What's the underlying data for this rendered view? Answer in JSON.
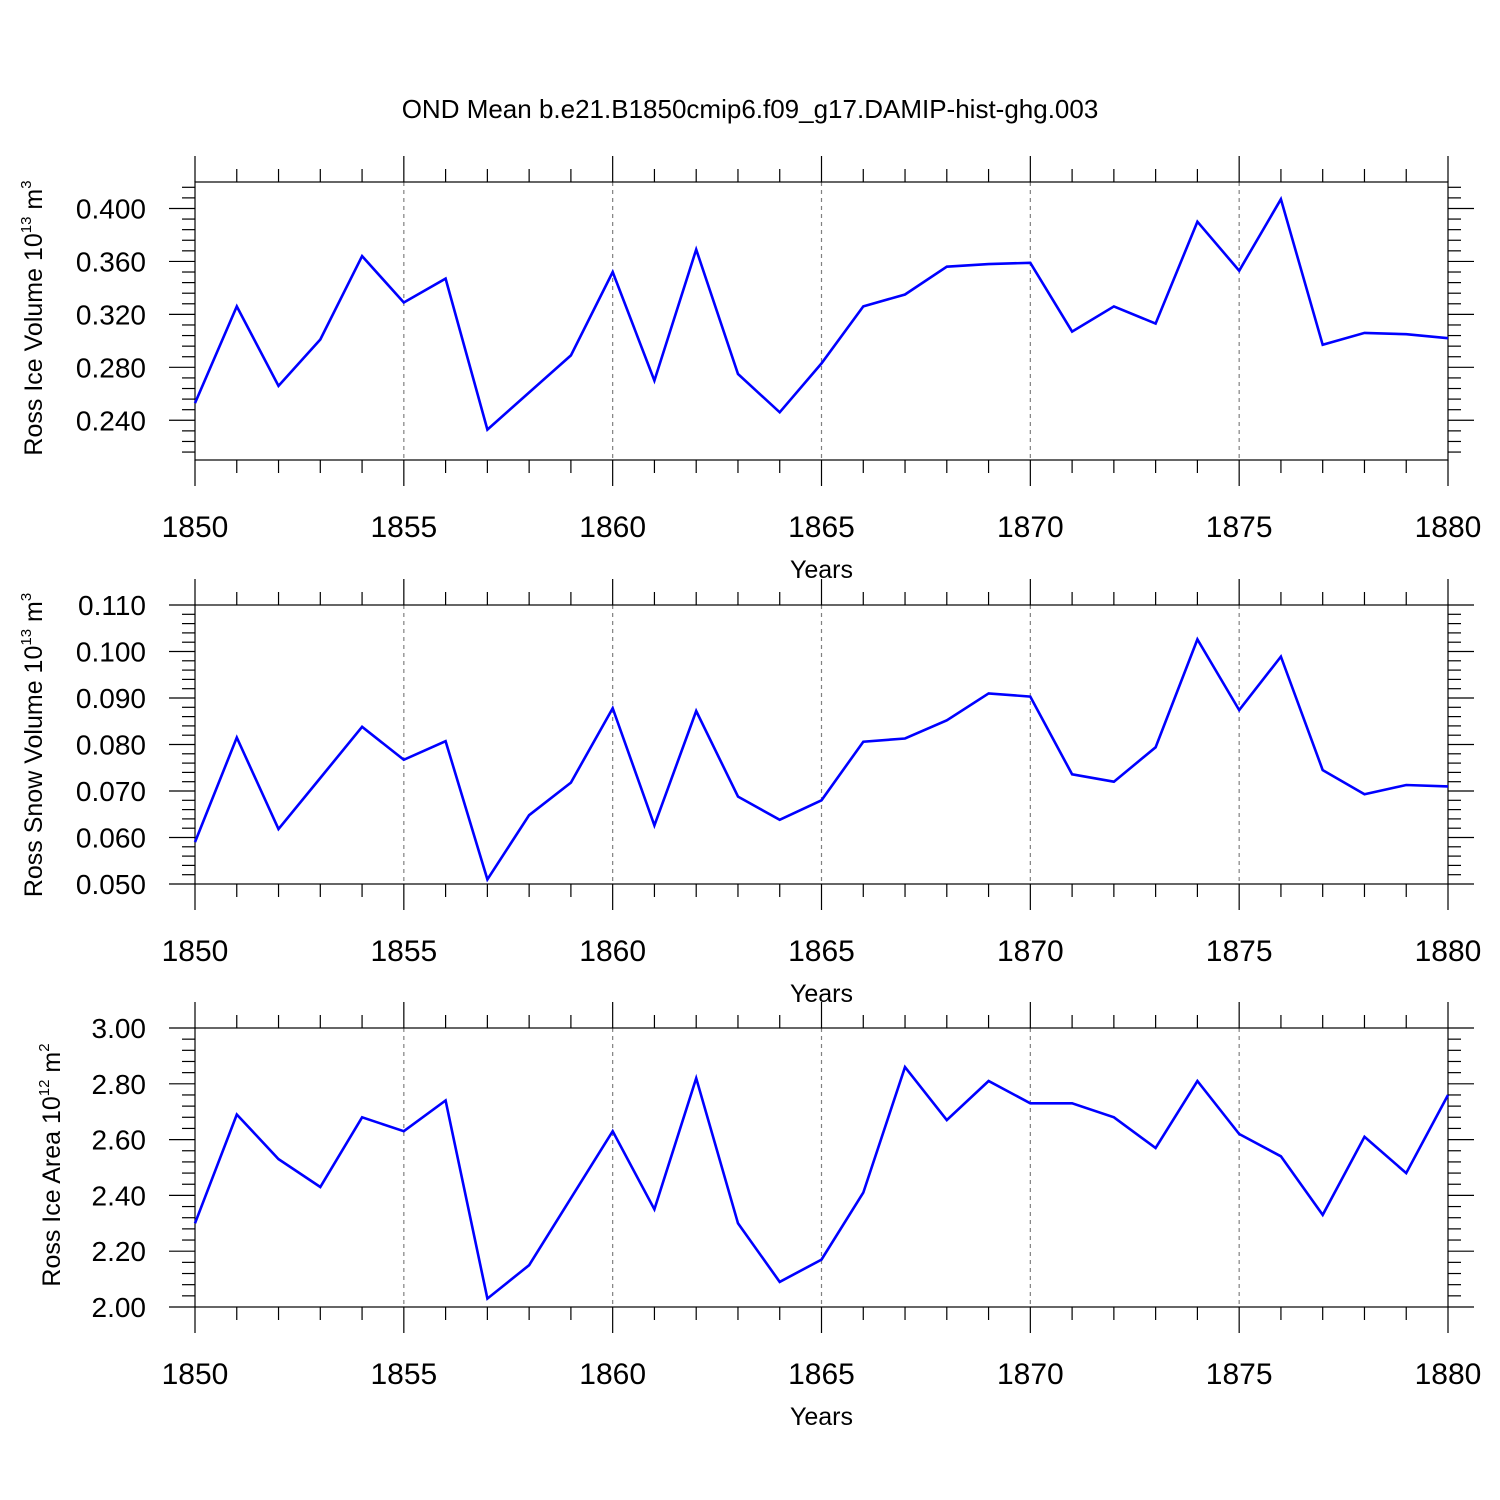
{
  "title": "OND Mean b.e21.B1850cmip6.f09_g17.DAMIP-hist-ghg.003",
  "colors": {
    "line": "#0000ff",
    "axis": "#000000",
    "grid": "#808080"
  },
  "chart_data": [
    {
      "type": "line",
      "ylabel": {
        "text": "Ross Ice Volume 10",
        "sup": "13",
        "unit": " m",
        "unit_sup": "3"
      },
      "xlabel": "Years",
      "xlim": [
        1850,
        1880
      ],
      "ylim": [
        0.21,
        0.42
      ],
      "yticks": [
        0.24,
        0.28,
        0.32,
        0.36,
        0.4
      ],
      "ytick_labels": [
        "0.240",
        "0.280",
        "0.320",
        "0.360",
        "0.400"
      ],
      "xticks": [
        1850,
        1855,
        1860,
        1865,
        1870,
        1875,
        1880
      ],
      "xtick_labels": [
        "1850",
        "1855",
        "1860",
        "1865",
        "1870",
        "1875",
        "1880"
      ],
      "grid": "vertical dashed at major x ticks",
      "x": [
        1850,
        1851,
        1852,
        1853,
        1854,
        1855,
        1856,
        1857,
        1858,
        1859,
        1860,
        1861,
        1862,
        1863,
        1864,
        1865,
        1866,
        1867,
        1868,
        1869,
        1870,
        1871,
        1872,
        1873,
        1874,
        1875,
        1876,
        1877,
        1878,
        1879,
        1880
      ],
      "values": [
        0.253,
        0.326,
        0.266,
        0.301,
        0.364,
        0.329,
        0.347,
        0.233,
        0.261,
        0.289,
        0.352,
        0.27,
        0.369,
        0.275,
        0.246,
        0.283,
        0.326,
        0.335,
        0.356,
        0.358,
        0.359,
        0.307,
        0.326,
        0.313,
        0.39,
        0.353,
        0.407,
        0.297,
        0.306,
        0.305,
        0.302
      ]
    },
    {
      "type": "line",
      "ylabel": {
        "text": "Ross Snow Volume 10",
        "sup": "13",
        "unit": " m",
        "unit_sup": "3"
      },
      "xlabel": "Years",
      "xlim": [
        1850,
        1880
      ],
      "ylim": [
        0.05,
        0.11
      ],
      "yticks": [
        0.05,
        0.06,
        0.07,
        0.08,
        0.09,
        0.1,
        0.11
      ],
      "ytick_labels": [
        "0.050",
        "0.060",
        "0.070",
        "0.080",
        "0.090",
        "0.100",
        "0.110"
      ],
      "xticks": [
        1850,
        1855,
        1860,
        1865,
        1870,
        1875,
        1880
      ],
      "xtick_labels": [
        "1850",
        "1855",
        "1860",
        "1865",
        "1870",
        "1875",
        "1880"
      ],
      "grid": "vertical dashed at major x ticks",
      "x": [
        1850,
        1851,
        1852,
        1853,
        1854,
        1855,
        1856,
        1857,
        1858,
        1859,
        1860,
        1861,
        1862,
        1863,
        1864,
        1865,
        1866,
        1867,
        1868,
        1869,
        1870,
        1871,
        1872,
        1873,
        1874,
        1875,
        1876,
        1877,
        1878,
        1879,
        1880
      ],
      "values": [
        0.059,
        0.0815,
        0.0618,
        0.0728,
        0.0838,
        0.0767,
        0.0807,
        0.051,
        0.0648,
        0.0718,
        0.0878,
        0.0626,
        0.0872,
        0.0688,
        0.0638,
        0.068,
        0.0806,
        0.0813,
        0.0852,
        0.091,
        0.0903,
        0.0736,
        0.072,
        0.0794,
        0.1026,
        0.0874,
        0.0989,
        0.0745,
        0.0693,
        0.0713,
        0.071
      ]
    },
    {
      "type": "line",
      "ylabel": {
        "text": "Ross Ice Area 10",
        "sup": "12",
        "unit": " m",
        "unit_sup": "2"
      },
      "xlabel": "Years",
      "xlim": [
        1850,
        1880
      ],
      "ylim": [
        2.0,
        3.0
      ],
      "yticks": [
        2.0,
        2.2,
        2.4,
        2.6,
        2.8,
        3.0
      ],
      "ytick_labels": [
        "2.00",
        "2.20",
        "2.40",
        "2.60",
        "2.80",
        "3.00"
      ],
      "xticks": [
        1850,
        1855,
        1860,
        1865,
        1870,
        1875,
        1880
      ],
      "xtick_labels": [
        "1850",
        "1855",
        "1860",
        "1865",
        "1870",
        "1875",
        "1880"
      ],
      "grid": "vertical dashed at major x ticks",
      "x": [
        1850,
        1851,
        1852,
        1853,
        1854,
        1855,
        1856,
        1857,
        1858,
        1859,
        1860,
        1861,
        1862,
        1863,
        1864,
        1865,
        1866,
        1867,
        1868,
        1869,
        1870,
        1871,
        1872,
        1873,
        1874,
        1875,
        1876,
        1877,
        1878,
        1879,
        1880
      ],
      "values": [
        2.3,
        2.69,
        2.53,
        2.43,
        2.68,
        2.63,
        2.74,
        2.03,
        2.15,
        2.39,
        2.63,
        2.35,
        2.82,
        2.3,
        2.09,
        2.17,
        2.41,
        2.86,
        2.67,
        2.81,
        2.73,
        2.73,
        2.68,
        2.57,
        2.81,
        2.62,
        2.54,
        2.33,
        2.61,
        2.48,
        2.76
      ]
    }
  ]
}
